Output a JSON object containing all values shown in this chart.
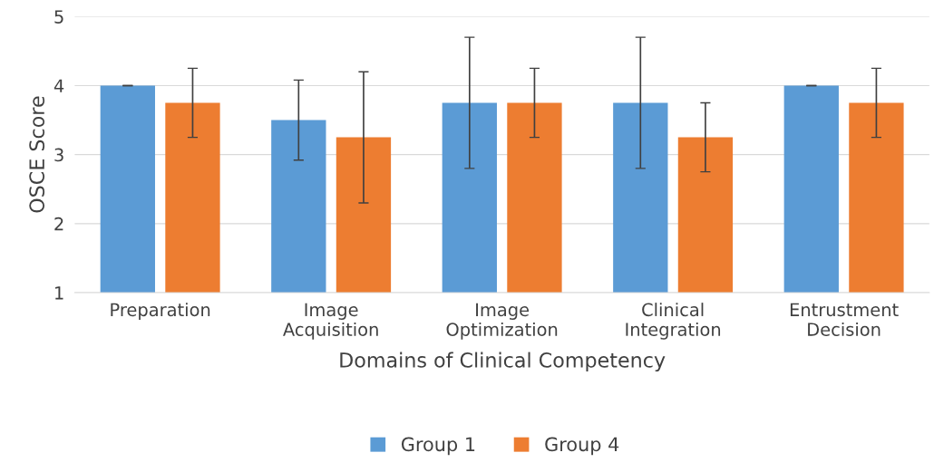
{
  "chart_data": {
    "type": "bar",
    "xlabel": "Domains of Clinical Competency",
    "ylabel": "OSCE Score",
    "categories": [
      "Preparation",
      "Image Acquisition",
      "Image Optimization",
      "Clinical Integration",
      "Entrustment Decision"
    ],
    "series": [
      {
        "name": "Group 1",
        "color": "#5b9bd5",
        "values": [
          4.0,
          3.5,
          3.75,
          3.75,
          4.0
        ],
        "errors": [
          0,
          0.58,
          0.95,
          0.95,
          0
        ]
      },
      {
        "name": "Group 4",
        "color": "#ed7d31",
        "values": [
          3.75,
          3.25,
          3.75,
          3.25,
          3.75
        ],
        "errors": [
          0.5,
          0.95,
          0.5,
          0.5,
          0.5
        ]
      }
    ],
    "ylim": [
      1,
      5
    ],
    "yticks": [
      1,
      2,
      3,
      4,
      5
    ],
    "grid": "y",
    "legend": "bottom"
  }
}
